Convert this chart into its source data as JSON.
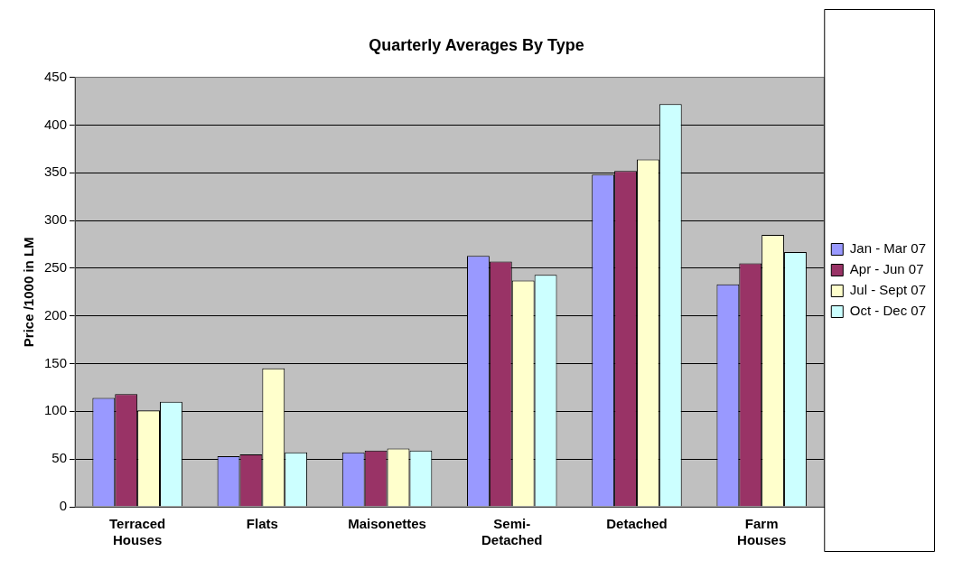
{
  "chart_data": {
    "type": "bar",
    "title": "Quarterly Averages By Type",
    "ylabel": "Price /1000 in LM",
    "categories": [
      "Terraced Houses",
      "Flats",
      "Maisonettes",
      "Semi-Detached",
      "Detached",
      "Farm Houses"
    ],
    "series": [
      {
        "name": "Jan - Mar 07",
        "color": "#9999ff",
        "values": [
          114,
          53,
          57,
          263,
          348,
          233
        ]
      },
      {
        "name": "Apr - Jun 07",
        "color": "#993366",
        "values": [
          118,
          55,
          59,
          257,
          352,
          255
        ]
      },
      {
        "name": "Jul - Sept 07",
        "color": "#ffffcc",
        "values": [
          101,
          145,
          61,
          237,
          364,
          285
        ]
      },
      {
        "name": "Oct - Dec 07",
        "color": "#ccffff",
        "values": [
          110,
          57,
          59,
          243,
          422,
          267
        ]
      }
    ],
    "ylim": [
      0,
      450
    ],
    "yticks": [
      0,
      50,
      100,
      150,
      200,
      250,
      300,
      350,
      400,
      450
    ],
    "grid": "y",
    "legend": "right"
  }
}
